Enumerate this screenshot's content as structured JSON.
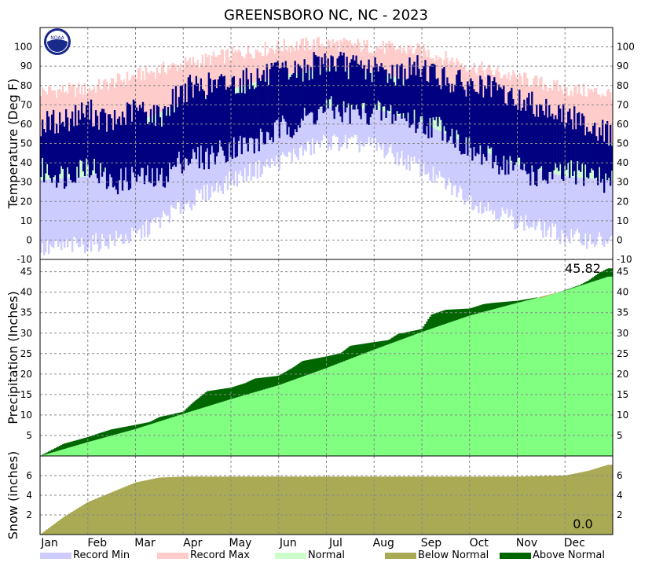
{
  "title": "GREENSBORO NC, NC - 2023",
  "colors": {
    "record_min": "#ccccff",
    "record_max": "#ffcccc",
    "normal": "#ccffcc",
    "actual_temp": "#000080",
    "precip_normal": "#80ff80",
    "below_normal": "#aaaa55",
    "above_normal": "#006600",
    "snow": "#aaaa55"
  },
  "logo_text": "NOAA",
  "months": [
    "Jan",
    "Feb",
    "Mar",
    "Apr",
    "May",
    "Jun",
    "Jul",
    "Aug",
    "Sep",
    "Oct",
    "Nov",
    "Dec"
  ],
  "legend": [
    {
      "label": "Record Min",
      "color": "#ccccff"
    },
    {
      "label": "Record Max",
      "color": "#ffcccc"
    },
    {
      "label": "Normal",
      "color": "#ccffcc"
    },
    {
      "label": "Below Normal",
      "color": "#aaaa55"
    },
    {
      "label": "Above Normal",
      "color": "#006600"
    }
  ],
  "chart_data": [
    {
      "type": "area",
      "panel": "temperature",
      "ylabel": "Temperature (Deg F)",
      "ylim": [
        -10,
        110
      ],
      "yticks": [
        -10,
        0,
        10,
        20,
        30,
        40,
        50,
        60,
        70,
        80,
        90,
        100
      ],
      "grid": true,
      "x_unit": "month",
      "series": [
        {
          "name": "Record Max",
          "x": [
            1,
            2,
            3,
            4,
            5,
            6,
            7,
            8,
            9,
            10,
            11,
            12,
            12.9
          ],
          "values": [
            77,
            78,
            85,
            91,
            96,
            100,
            102,
            100,
            98,
            90,
            84,
            78,
            76
          ]
        },
        {
          "name": "Normal",
          "low": [
            31,
            33,
            40,
            48,
            57,
            65,
            69,
            68,
            61,
            49,
            39,
            33,
            31
          ],
          "high": [
            49,
            53,
            61,
            71,
            78,
            85,
            89,
            87,
            81,
            71,
            61,
            52,
            50
          ],
          "x": [
            1,
            2,
            3,
            4,
            5,
            6,
            7,
            8,
            9,
            10,
            11,
            12,
            12.9
          ]
        },
        {
          "name": "Record Min",
          "x": [
            1,
            2,
            3,
            4,
            5,
            6,
            7,
            8,
            9,
            10,
            11,
            12,
            12.9
          ],
          "values": [
            -5,
            -2,
            2,
            18,
            31,
            41,
            51,
            49,
            37,
            21,
            10,
            2,
            -1
          ]
        },
        {
          "name": "Actual",
          "x": [
            1,
            1.5,
            2,
            2.5,
            3,
            3.5,
            4,
            4.5,
            5,
            5.5,
            6,
            6.5,
            7,
            7.5,
            8,
            8.5,
            9,
            9.5,
            10,
            10.5,
            11,
            11.5,
            12,
            12.5,
            12.9
          ],
          "low": [
            36,
            33,
            40,
            29,
            33,
            31,
            42,
            43,
            48,
            50,
            57,
            62,
            68,
            66,
            66,
            65,
            60,
            58,
            46,
            41,
            38,
            32,
            34,
            35,
            30
          ],
          "high": [
            60,
            62,
            67,
            60,
            68,
            64,
            78,
            80,
            81,
            84,
            86,
            88,
            93,
            90,
            88,
            86,
            90,
            83,
            80,
            78,
            72,
            70,
            64,
            60,
            55
          ]
        }
      ]
    },
    {
      "type": "area",
      "panel": "precipitation",
      "ylabel": "Precipitation (Inches)",
      "ylim": [
        0,
        48
      ],
      "yticks": [
        5,
        10,
        15,
        20,
        25,
        30,
        35,
        40,
        45
      ],
      "grid": true,
      "annotation": "45.82",
      "series": [
        {
          "name": "Normal",
          "x": [
            1,
            2,
            3,
            4,
            5,
            6,
            7,
            8,
            9,
            10,
            11,
            12,
            12.9
          ],
          "values": [
            0,
            3.4,
            6.6,
            10.3,
            13.9,
            17.3,
            21.5,
            26,
            30.3,
            34.3,
            37.4,
            40.4,
            43.8
          ]
        },
        {
          "name": "Actual",
          "x": [
            1,
            1.3,
            1.5,
            2,
            2.2,
            2.5,
            3,
            3.3,
            3.5,
            4,
            4.2,
            4.5,
            5,
            5.3,
            5.5,
            6,
            6.3,
            6.5,
            7,
            7.3,
            7.5,
            8,
            8.3,
            8.5,
            9,
            9.2,
            9.5,
            10,
            10.3,
            10.5,
            11,
            11.4,
            11.5,
            12,
            12.3,
            12.5,
            12.7,
            12.9
          ],
          "values": [
            0,
            1.8,
            3,
            4.6,
            5.4,
            6.5,
            7.6,
            8.3,
            9.5,
            10.8,
            13,
            15.8,
            16.7,
            17.8,
            18.9,
            19.6,
            21.6,
            23.2,
            24.3,
            25.1,
            26.9,
            27.8,
            28.3,
            29.8,
            31,
            34.5,
            35.7,
            36,
            37.1,
            37.4,
            37.9,
            38.7,
            38.6,
            40.5,
            41.7,
            42.9,
            44.6,
            45.82
          ]
        }
      ]
    },
    {
      "type": "area",
      "panel": "snow",
      "ylabel": "Snow (inches)",
      "ylim": [
        0,
        8
      ],
      "yticks": [
        2,
        4,
        6
      ],
      "grid": true,
      "annotation": "0.0",
      "series": [
        {
          "name": "Normal",
          "x": [
            1,
            1.5,
            2,
            2.5,
            3,
            3.5,
            4,
            5,
            6,
            7,
            8,
            9,
            10,
            11,
            12,
            12.5,
            12.9
          ],
          "values": [
            0,
            1.8,
            3.3,
            4.3,
            5.3,
            5.8,
            5.9,
            5.9,
            5.9,
            5.9,
            5.9,
            5.9,
            5.9,
            5.9,
            6,
            6.5,
            7.1
          ]
        },
        {
          "name": "Actual",
          "x": [
            1,
            12.9
          ],
          "values": [
            0,
            0
          ]
        }
      ]
    }
  ]
}
